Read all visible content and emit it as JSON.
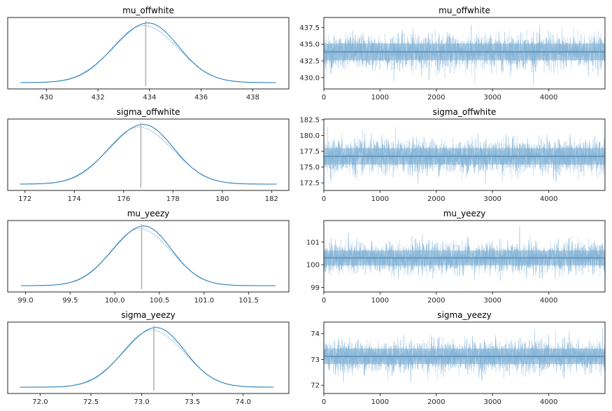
{
  "chart_data": [
    {
      "type": "line",
      "kind": "density",
      "title": "mu_offwhite",
      "xlim": [
        428.5,
        939
      ],
      "x_range": [
        428.5,
        439.4
      ],
      "xticks": [
        430,
        432,
        434,
        436,
        438
      ],
      "xtick_labels": [
        "430",
        "432",
        "434",
        "436",
        "438"
      ],
      "mean": 433.85,
      "sd": 1.25,
      "support": [
        429.0,
        438.9
      ],
      "yticks": []
    },
    {
      "type": "line",
      "kind": "trace",
      "title": "mu_offwhite",
      "xlim": [
        0,
        5000
      ],
      "ylim": [
        428.3,
        439.0
      ],
      "xticks": [
        0,
        1000,
        2000,
        3000,
        4000
      ],
      "xtick_labels": [
        "0",
        "1000",
        "2000",
        "3000",
        "4000"
      ],
      "yticks": [
        430.0,
        432.5,
        435.0,
        437.5
      ],
      "ytick_labels": [
        "430.0",
        "432.5",
        "435.0",
        "437.5"
      ],
      "mean": 433.85,
      "sd": 1.25,
      "n_draws": 5000
    },
    {
      "type": "line",
      "kind": "density",
      "title": "sigma_offwhite",
      "x_range": [
        171.3,
        182.7
      ],
      "xticks": [
        172,
        174,
        176,
        178,
        180,
        182
      ],
      "xtick_labels": [
        "172",
        "174",
        "176",
        "178",
        "180",
        "182"
      ],
      "mean": 176.7,
      "sd": 1.3,
      "support": [
        171.8,
        182.2
      ],
      "yticks": []
    },
    {
      "type": "line",
      "kind": "trace",
      "title": "sigma_offwhite",
      "xlim": [
        0,
        5000
      ],
      "ylim": [
        171.3,
        182.6
      ],
      "xticks": [
        0,
        1000,
        2000,
        3000,
        4000
      ],
      "xtick_labels": [
        "0",
        "1000",
        "2000",
        "3000",
        "4000"
      ],
      "yticks": [
        172.5,
        175.0,
        177.5,
        180.0,
        182.5
      ],
      "ytick_labels": [
        "172.5",
        "175.0",
        "177.5",
        "180.0",
        "182.5"
      ],
      "mean": 176.7,
      "sd": 1.3,
      "n_draws": 5000
    },
    {
      "type": "line",
      "kind": "density",
      "title": "mu_yeezy",
      "x_range": [
        98.8,
        101.95
      ],
      "xticks": [
        99.0,
        99.5,
        100.0,
        100.5,
        101.0,
        101.5
      ],
      "xtick_labels": [
        "99.0",
        "99.5",
        "100.0",
        "100.5",
        "101.0",
        "101.5"
      ],
      "mean": 100.3,
      "sd": 0.33,
      "support": [
        98.95,
        101.8
      ],
      "yticks": []
    },
    {
      "type": "line",
      "kind": "trace",
      "title": "mu_yeezy",
      "xlim": [
        0,
        5000
      ],
      "ylim": [
        98.8,
        101.95
      ],
      "xticks": [
        0,
        1000,
        2000,
        3000,
        4000
      ],
      "xtick_labels": [
        "0",
        "1000",
        "2000",
        "3000",
        "4000"
      ],
      "yticks": [
        99,
        100,
        101
      ],
      "ytick_labels": [
        "99",
        "100",
        "101"
      ],
      "mean": 100.3,
      "sd": 0.33,
      "n_draws": 5000
    },
    {
      "type": "line",
      "kind": "density",
      "title": "sigma_yeezy",
      "x_range": [
        71.68,
        74.45
      ],
      "xticks": [
        72.0,
        72.5,
        73.0,
        73.5,
        74.0
      ],
      "xtick_labels": [
        "72.0",
        "72.5",
        "73.0",
        "73.5",
        "74.0"
      ],
      "mean": 73.12,
      "sd": 0.3,
      "support": [
        71.8,
        74.3
      ],
      "yticks": []
    },
    {
      "type": "line",
      "kind": "trace",
      "title": "sigma_yeezy",
      "xlim": [
        0,
        5000
      ],
      "ylim": [
        71.68,
        74.45
      ],
      "xticks": [
        0,
        1000,
        2000,
        3000,
        4000
      ],
      "xtick_labels": [
        "0",
        "1000",
        "2000",
        "3000",
        "4000"
      ],
      "yticks": [
        72,
        73,
        74
      ],
      "ytick_labels": [
        "72",
        "73",
        "74"
      ],
      "mean": 73.12,
      "sd": 0.3,
      "n_draws": 5000
    }
  ],
  "colors": {
    "line": "#1f77b4",
    "trace": "#7fb0d6",
    "mean_line_density": "#b0b0b0",
    "mean_line_trace": "#5a8db4",
    "frame": "#262626"
  }
}
